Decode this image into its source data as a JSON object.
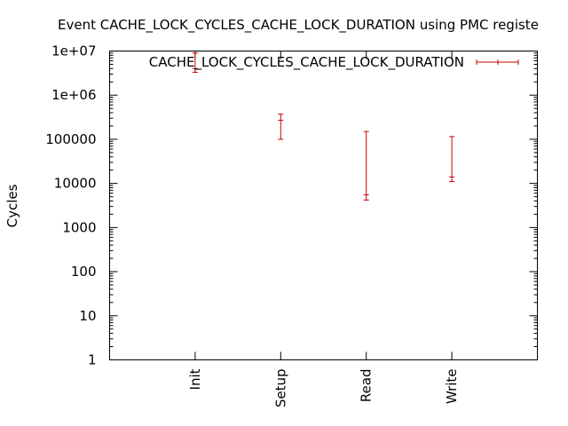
{
  "chart_data": {
    "type": "errorbar",
    "title": "Event CACHE_LOCK_CYCLES_CACHE_LOCK_DURATION using PMC registe",
    "ylabel": "Cycles",
    "xlabel": "",
    "y_scale": "log",
    "ylim": [
      1,
      10000000
    ],
    "y_ticks": [
      {
        "value": 1,
        "label": "1"
      },
      {
        "value": 10,
        "label": "10"
      },
      {
        "value": 100,
        "label": "100"
      },
      {
        "value": 1000,
        "label": "1000"
      },
      {
        "value": 10000,
        "label": "10000"
      },
      {
        "value": 100000,
        "label": "100000"
      },
      {
        "value": 1000000,
        "label": "1e+06"
      },
      {
        "value": 10000000,
        "label": "1e+07"
      }
    ],
    "categories": [
      "Init",
      "Setup",
      "Read",
      "Write"
    ],
    "legend_position": "top-right",
    "series": [
      {
        "name": "CACHE_LOCK_CYCLES_CACHE_LOCK_DURATION",
        "color": "#cc0000",
        "points": [
          {
            "x": "Init",
            "y": 4000000,
            "low": 3300000,
            "high": 9000000
          },
          {
            "x": "Setup",
            "y": 270000,
            "low": 100000,
            "high": 370000
          },
          {
            "x": "Read",
            "y": 5500,
            "low": 4200,
            "high": 150000
          },
          {
            "x": "Write",
            "y": 14000,
            "low": 11000,
            "high": 115000
          }
        ]
      }
    ]
  }
}
